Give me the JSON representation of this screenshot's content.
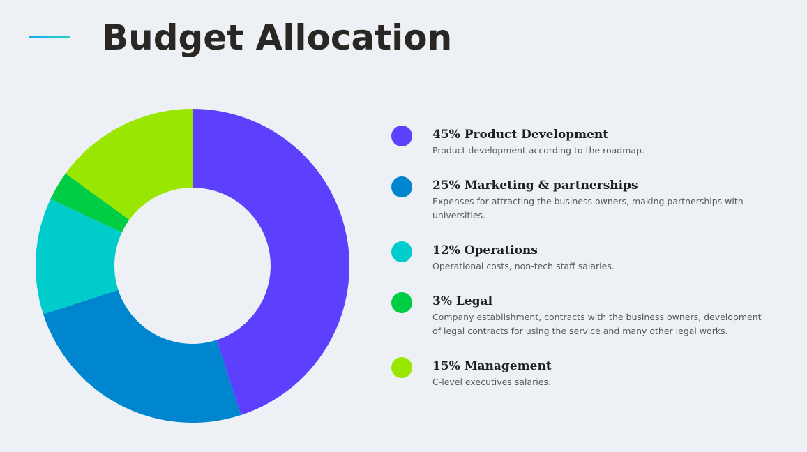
{
  "title": "Budget Allocation",
  "chart_data": {
    "type": "pie",
    "variant": "donut",
    "title": "Budget Allocation",
    "slices": [
      {
        "value": 45,
        "label": "45% Product Development",
        "description": "Product development according to the roadmap.",
        "color": "#5d3ffe"
      },
      {
        "value": 25,
        "label": "25% Marketing & partnerships",
        "description": "Expenses for attracting the business owners, making partnerships with universities.",
        "color": "#0086cf"
      },
      {
        "value": 12,
        "label": "12% Operations",
        "description": "Operational costs, non-tech staff salaries.",
        "color": "#00cccc"
      },
      {
        "value": 3,
        "label": "3% Legal",
        "description": "Company establishment, contracts with the business owners, development of legal contracts for using the service and many other legal works.",
        "color": "#00cc44"
      },
      {
        "value": 15,
        "label": "15% Management",
        "description": "C-level executives salaries.",
        "color": "#99e600"
      }
    ],
    "start_angle": "top",
    "direction": "clockwise",
    "legend_position": "right"
  }
}
